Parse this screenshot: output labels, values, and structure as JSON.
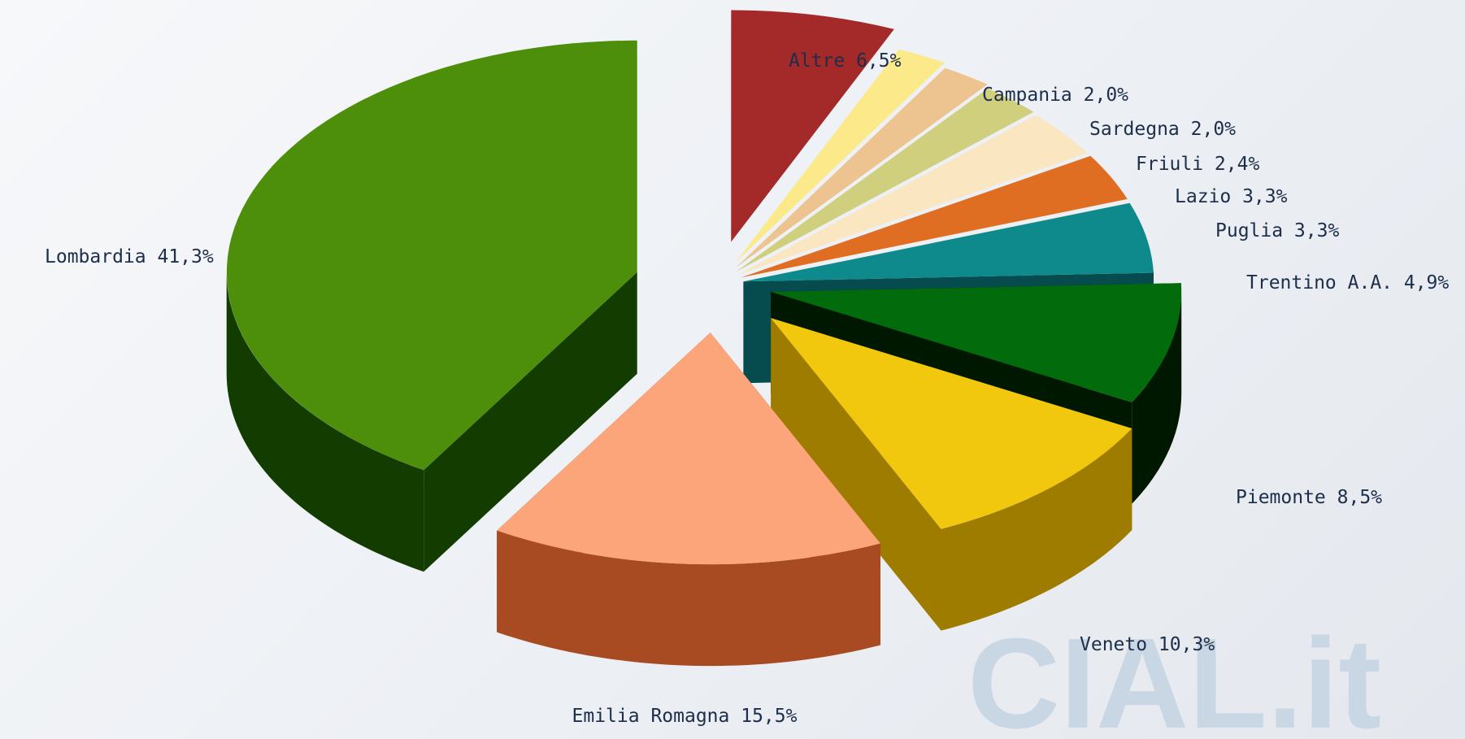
{
  "chart_data": {
    "type": "pie",
    "style": "3d-exploded",
    "slices": [
      {
        "name": "Altre",
        "value": 6.5,
        "label": "Altre 6,5%",
        "color": "#a42a2a",
        "dark": "#5e1010"
      },
      {
        "name": "Campania",
        "value": 2.0,
        "label": "Campania 2,0%",
        "color": "#fbe98a",
        "dark": "#b4a24c"
      },
      {
        "name": "Sardegna",
        "value": 2.0,
        "label": "Sardegna 2,0%",
        "color": "#edc490",
        "dark": "#a88250"
      },
      {
        "name": "Friuli",
        "value": 2.4,
        "label": "Friuli 2,4%",
        "color": "#cfcf7e",
        "dark": "#8a8a3c"
      },
      {
        "name": "Lazio",
        "value": 3.3,
        "label": "Lazio 3,3%",
        "color": "#fbe6c2",
        "dark": "#b8a27e"
      },
      {
        "name": "Puglia",
        "value": 3.3,
        "label": "Puglia 3,3%",
        "color": "#df6e22",
        "dark": "#8e3f0c"
      },
      {
        "name": "Trentino A.A.",
        "value": 4.9,
        "label": "Trentino A.A. 4,9%",
        "color": "#0e8a8c",
        "dark": "#064c4e"
      },
      {
        "name": "Piemonte",
        "value": 8.5,
        "label": "Piemonte 8,5%",
        "color": "#026c0c",
        "dark": "#001800"
      },
      {
        "name": "Veneto",
        "value": 10.3,
        "label": "Veneto 10,3%",
        "color": "#f1c80e",
        "dark": "#9e7c00"
      },
      {
        "name": "Emilia Romagna",
        "value": 15.5,
        "label": "Emilia Romagna 15,5%",
        "color": "#fca47a",
        "dark": "#a84a22"
      },
      {
        "name": "Lombardia",
        "value": 41.3,
        "label": "Lombardia 41,3%",
        "color": "#4d8e0a",
        "dark": "#123c00"
      }
    ]
  },
  "watermark": "CIAL.it",
  "colors": {
    "label_text": "#1c2e4a",
    "watermark": "#c9d6e3"
  }
}
